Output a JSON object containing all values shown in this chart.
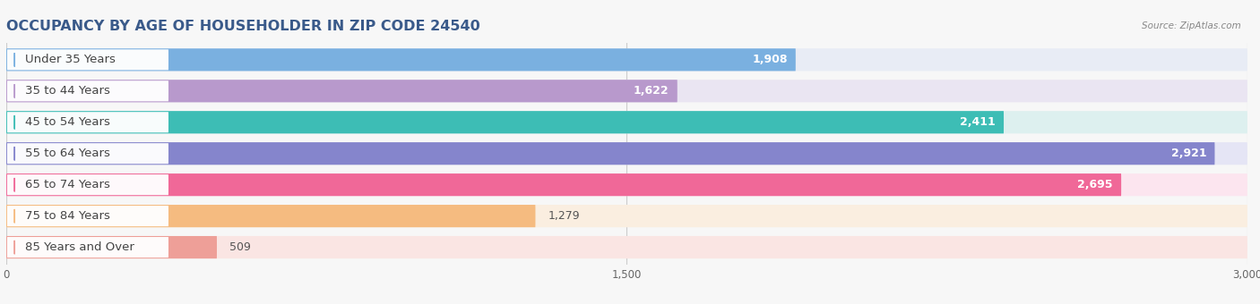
{
  "title": "OCCUPANCY BY AGE OF HOUSEHOLDER IN ZIP CODE 24540",
  "source": "Source: ZipAtlas.com",
  "categories": [
    "Under 35 Years",
    "35 to 44 Years",
    "45 to 54 Years",
    "55 to 64 Years",
    "65 to 74 Years",
    "75 to 84 Years",
    "85 Years and Over"
  ],
  "values": [
    1908,
    1622,
    2411,
    2921,
    2695,
    1279,
    509
  ],
  "bar_colors": [
    "#7ab0e0",
    "#b899cc",
    "#3dbdb5",
    "#8585cc",
    "#f06898",
    "#f5bb80",
    "#ee9f98"
  ],
  "bar_bg_colors": [
    "#e8ecf5",
    "#eae5f2",
    "#ddf0ef",
    "#e5e5f5",
    "#fce5ef",
    "#faeee0",
    "#fae5e3"
  ],
  "label_bg_color": "#ffffff",
  "xlim": [
    0,
    3000
  ],
  "xticks": [
    0,
    1500,
    3000
  ],
  "xtick_labels": [
    "0",
    "1,500",
    "3,000"
  ],
  "fig_bg_color": "#f7f7f7",
  "title_fontsize": 11.5,
  "label_fontsize": 9.5,
  "value_fontsize": 9,
  "title_color": "#3a5a8a",
  "label_text_color": "#444444",
  "source_color": "#888888"
}
